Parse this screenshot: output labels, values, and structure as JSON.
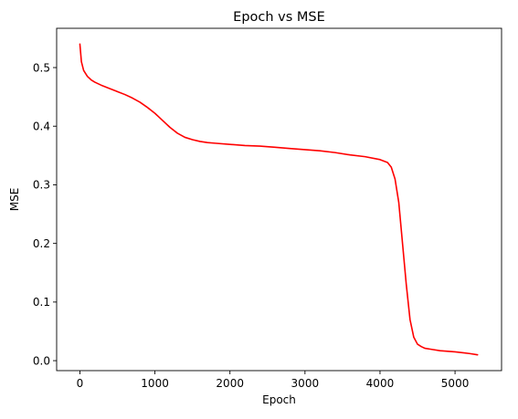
{
  "chart_data": {
    "type": "line",
    "title": "Epoch vs MSE",
    "xlabel": "Epoch",
    "ylabel": "MSE",
    "xlim": [
      -310,
      5620
    ],
    "ylim": [
      -0.017,
      0.567
    ],
    "xticks": [
      0,
      1000,
      2000,
      3000,
      4000,
      5000
    ],
    "yticks": [
      0.0,
      0.1,
      0.2,
      0.3,
      0.4,
      0.5
    ],
    "xtick_labels": [
      "0",
      "1000",
      "2000",
      "3000",
      "4000",
      "5000"
    ],
    "ytick_labels": [
      "0.0",
      "0.1",
      "0.2",
      "0.3",
      "0.4",
      "0.5"
    ],
    "grid": false,
    "legend": "none",
    "series": [
      {
        "color": "#ff0000",
        "x": [
          0,
          20,
          50,
          100,
          150,
          200,
          300,
          400,
          500,
          600,
          700,
          800,
          900,
          1000,
          1100,
          1200,
          1300,
          1400,
          1500,
          1600,
          1700,
          1800,
          2000,
          2200,
          2400,
          2600,
          2800,
          3000,
          3200,
          3400,
          3600,
          3800,
          4000,
          4100,
          4150,
          4200,
          4250,
          4300,
          4350,
          4400,
          4450,
          4500,
          4550,
          4600,
          4700,
          4800,
          5000,
          5200,
          5300
        ],
        "y": [
          0.54,
          0.51,
          0.495,
          0.485,
          0.479,
          0.475,
          0.469,
          0.464,
          0.459,
          0.454,
          0.448,
          0.441,
          0.432,
          0.422,
          0.41,
          0.398,
          0.388,
          0.381,
          0.377,
          0.374,
          0.372,
          0.371,
          0.369,
          0.367,
          0.366,
          0.364,
          0.362,
          0.36,
          0.358,
          0.355,
          0.351,
          0.348,
          0.343,
          0.338,
          0.33,
          0.31,
          0.27,
          0.2,
          0.13,
          0.07,
          0.04,
          0.028,
          0.024,
          0.021,
          0.019,
          0.017,
          0.015,
          0.012,
          0.01
        ]
      }
    ]
  }
}
